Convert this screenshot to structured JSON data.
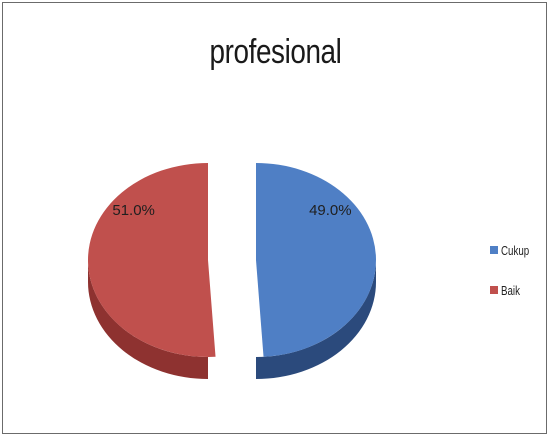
{
  "chart_data": {
    "type": "pie",
    "title": "profesional",
    "exploded": true,
    "three_d": true,
    "legend_position": "right",
    "slices": [
      {
        "label": "Cukup",
        "value": 49.0,
        "data_label": "49.0%",
        "color": "#4f7fc5",
        "side_color": "#2b4a7c"
      },
      {
        "label": "Baik",
        "value": 51.0,
        "data_label": "51.0%",
        "color": "#c0504d",
        "side_color": "#8e3230"
      }
    ]
  }
}
